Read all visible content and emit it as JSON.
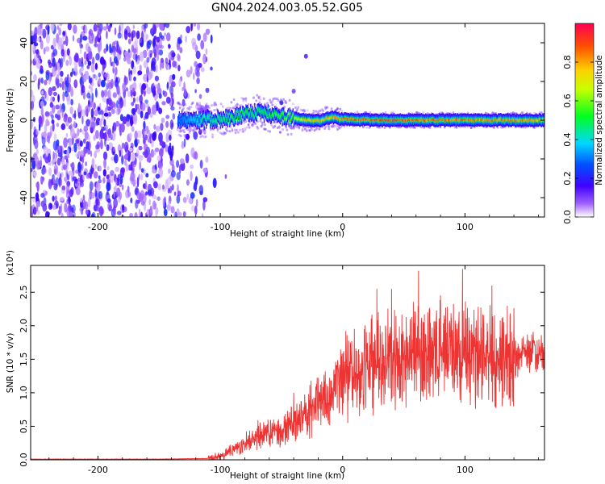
{
  "title": "GN04.2024.003.05.52.G05",
  "chart_data": [
    {
      "type": "heatmap",
      "xlabel": "Height of straight line (km)",
      "ylabel": "Frequency (Hz)",
      "xlim": [
        -255,
        165
      ],
      "ylim": [
        -50,
        50
      ],
      "xticks": [
        -200,
        -100,
        0,
        100
      ],
      "xtick_labels": [
        "-200",
        "-100",
        "0",
        "100"
      ],
      "yticks": [
        -40,
        -20,
        0,
        20,
        40
      ],
      "ytick_labels": [
        "-40",
        "-20",
        "0",
        "20",
        "40"
      ],
      "colorbar": {
        "label": "Normalized spectral amplitude",
        "range": [
          0,
          1
        ],
        "ticks": [
          0.0,
          0.2,
          0.4,
          0.6,
          0.8
        ],
        "tick_labels": [
          "0.0",
          "0.2",
          "0.4",
          "0.6",
          "0.8"
        ],
        "colormap": [
          "#ffffff",
          "#8000ff",
          "#0000ff",
          "#00c8ff",
          "#00ff40",
          "#ffff00",
          "#ff8000",
          "#ff0040"
        ]
      },
      "noise_region_x": [
        -255,
        -110
      ],
      "ridge": [
        {
          "x": -135,
          "f": 0.5,
          "amp": 0.3
        },
        {
          "x": -115,
          "f": 0.0,
          "amp": 0.45
        },
        {
          "x": -100,
          "f": 0.5,
          "amp": 0.5
        },
        {
          "x": -90,
          "f": 1.5,
          "amp": 0.55
        },
        {
          "x": -80,
          "f": 3.0,
          "amp": 0.55
        },
        {
          "x": -70,
          "f": 4.0,
          "amp": 0.5
        },
        {
          "x": -60,
          "f": 3.0,
          "amp": 0.55
        },
        {
          "x": -50,
          "f": 2.0,
          "amp": 0.6
        },
        {
          "x": -40,
          "f": 1.0,
          "amp": 0.7
        },
        {
          "x": -30,
          "f": 0.0,
          "amp": 0.8
        },
        {
          "x": -20,
          "f": -0.5,
          "amp": 0.85
        },
        {
          "x": -10,
          "f": 1.5,
          "amp": 0.85
        },
        {
          "x": 0,
          "f": 0.5,
          "amp": 0.9
        },
        {
          "x": 25,
          "f": 0.0,
          "amp": 0.95
        },
        {
          "x": 50,
          "f": 0.0,
          "amp": 0.95
        },
        {
          "x": 75,
          "f": 0.0,
          "amp": 0.92
        },
        {
          "x": 100,
          "f": 0.0,
          "amp": 0.9
        },
        {
          "x": 125,
          "f": 0.0,
          "amp": 0.9
        },
        {
          "x": 150,
          "f": 0.0,
          "amp": 0.88
        },
        {
          "x": 165,
          "f": 0.0,
          "amp": 0.85
        }
      ]
    },
    {
      "type": "line",
      "xlabel": "Height of straight line (km)",
      "ylabel": "SNR (10 * v/v)",
      "yscale_label": "(x10⁴)",
      "xlim": [
        -255,
        165
      ],
      "ylim": [
        0,
        2.9
      ],
      "xticks": [
        -200,
        -100,
        0,
        100
      ],
      "xtick_labels": [
        "-200",
        "-100",
        "0",
        "100"
      ],
      "yticks": [
        0.0,
        0.5,
        1.0,
        1.5,
        2.0,
        2.5
      ],
      "ytick_labels": [
        "0.0",
        "0.5",
        "1.0",
        "1.5",
        "2.0",
        "2.5"
      ],
      "series": [
        {
          "color": "#ee3333",
          "envelope_x": [
            -255,
            -150,
            -110,
            -100,
            -90,
            -80,
            -70,
            -60,
            -50,
            -40,
            -30,
            -20,
            -10,
            0,
            10,
            20,
            30,
            40,
            50,
            60,
            70,
            80,
            90,
            100,
            110,
            120,
            130,
            140,
            150,
            160,
            165
          ],
          "envelope_y": [
            0.01,
            0.01,
            0.02,
            0.05,
            0.15,
            0.25,
            0.35,
            0.4,
            0.45,
            0.55,
            0.7,
            0.85,
            1.0,
            1.2,
            1.3,
            1.4,
            1.45,
            1.5,
            1.55,
            1.6,
            1.6,
            1.6,
            1.6,
            1.6,
            1.58,
            1.55,
            1.55,
            1.55,
            1.57,
            1.58,
            1.6
          ],
          "peaks": [
            {
              "x": -40,
              "y": 1.0
            },
            {
              "x": 28,
              "y": 2.55
            },
            {
              "x": 40,
              "y": 2.55
            },
            {
              "x": 62,
              "y": 2.82
            },
            {
              "x": 98,
              "y": 2.85
            },
            {
              "x": 122,
              "y": 2.6
            }
          ]
        }
      ]
    }
  ]
}
